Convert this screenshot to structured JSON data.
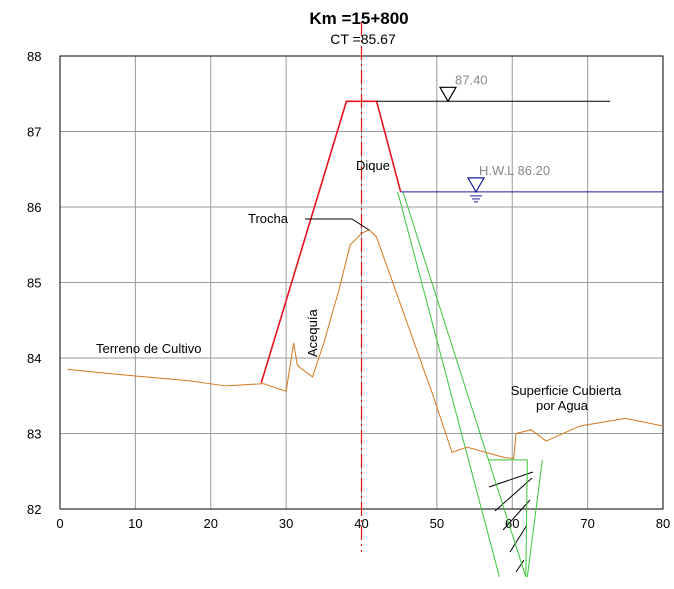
{
  "title": "Km =15+800",
  "subtitle": "CT =85.67",
  "chart_data": {
    "type": "line",
    "xlim": [
      0,
      80
    ],
    "ylim": [
      82,
      88
    ],
    "x_ticks": [
      0,
      10,
      20,
      30,
      40,
      50,
      60,
      70,
      80
    ],
    "y_ticks": [
      82,
      83,
      84,
      85,
      86,
      87,
      88
    ],
    "grid": true,
    "centerline_x": 40,
    "terrain": {
      "color": "#d4781c",
      "points": [
        [
          1,
          83.85
        ],
        [
          8,
          83.78
        ],
        [
          17,
          83.7
        ],
        [
          22,
          83.63
        ],
        [
          27,
          83.66
        ],
        [
          30,
          83.56
        ],
        [
          31,
          84.2
        ],
        [
          31.5,
          83.9
        ],
        [
          33.5,
          83.75
        ],
        [
          35,
          84.2
        ],
        [
          37,
          84.9
        ],
        [
          38.5,
          85.5
        ],
        [
          40,
          85.65
        ],
        [
          41,
          85.7
        ],
        [
          42,
          85.6
        ],
        [
          49.5,
          83.5
        ],
        [
          52,
          82.75
        ],
        [
          54,
          82.82
        ],
        [
          59,
          82.68
        ],
        [
          60.2,
          82.67
        ],
        [
          60.5,
          83
        ],
        [
          62.5,
          83.05
        ],
        [
          64.5,
          82.9
        ],
        [
          69,
          83.1
        ],
        [
          75,
          83.2
        ],
        [
          80,
          83.1
        ]
      ]
    },
    "levee": {
      "color": "#e8121c",
      "points": [
        [
          26.7,
          83.67
        ],
        [
          38,
          87.4
        ],
        [
          42,
          87.4
        ],
        [
          45.2,
          86.2
        ]
      ]
    },
    "excavation_lines": {
      "color": "#3ac83a",
      "lines": [
        [
          [
            44.8,
            86.2
          ],
          [
            58.3,
            81.1
          ]
        ],
        [
          [
            45.5,
            86.2
          ],
          [
            61.8,
            81.1
          ]
        ],
        [
          [
            56.8,
            82.65
          ],
          [
            62,
            82.65
          ]
        ],
        [
          [
            62,
            82.65
          ],
          [
            61.8,
            81.1
          ]
        ],
        [
          [
            64,
            82.65
          ],
          [
            62,
            81.1
          ]
        ]
      ]
    },
    "water_levels": [
      {
        "label": "87.40",
        "value": 87.4,
        "x_start": 42,
        "x_end": 73,
        "color": "#000000",
        "label_color": "#8a8a8a"
      },
      {
        "label": "H.W.L 86.20",
        "value": 86.2,
        "x_start": 45.2,
        "x_end": 80,
        "color": "#1c1c9c",
        "label_color": "#8a8a8a"
      }
    ],
    "annotations": [
      "Dique",
      "Trocha",
      "Acequía",
      "Terreno de Cultivo",
      "Superficie Cubierta",
      "por Agua"
    ]
  },
  "labels": {
    "dique": "Dique",
    "trocha": "Trocha",
    "acequia": "Acequía",
    "terreno": "Terreno de Cultivo",
    "superficie_line1": "Superficie Cubierta",
    "superficie_line2": "por Agua",
    "level_top": "87.40",
    "level_hwl": "H.W.L 86.20"
  }
}
